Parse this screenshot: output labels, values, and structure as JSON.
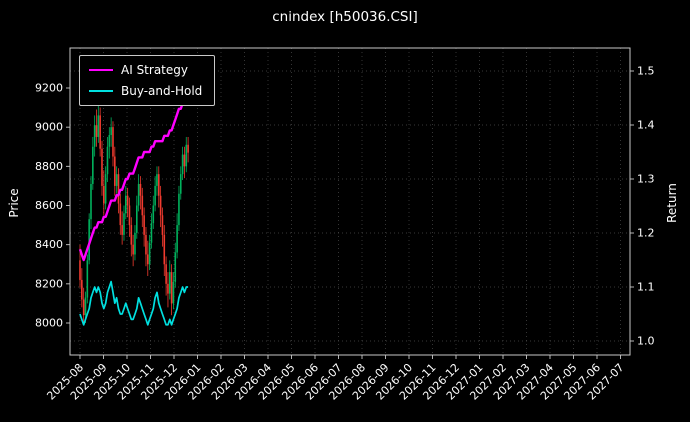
{
  "title": "cnindex [h50036.CSI]",
  "legend": {
    "items": [
      {
        "label": "AI Strategy",
        "color": "#ff00ff"
      },
      {
        "label": "Buy-and-Hold",
        "color": "#00e0e0"
      }
    ]
  },
  "chart_data": {
    "type": "candlestick+line",
    "title": "cnindex [h50036.CSI]",
    "x_tick_labels": [
      "2025-08",
      "2025-09",
      "2025-10",
      "2025-11",
      "2025-12",
      "2026-01",
      "2026-02",
      "2026-03",
      "2026-04",
      "2026-05",
      "2026-06",
      "2026-07",
      "2026-08",
      "2026-09",
      "2026-10",
      "2026-11",
      "2026-12",
      "2027-01",
      "2027-02",
      "2027-03",
      "2027-04",
      "2027-05",
      "2027-06",
      "2027-07"
    ],
    "price_axis": {
      "label": "Price",
      "ticks": [
        8000,
        8200,
        8400,
        8600,
        8800,
        9000,
        9200
      ],
      "range": [
        7950,
        9320
      ]
    },
    "return_axis": {
      "label": "Return",
      "ticks": [
        1.0,
        1.1,
        1.2,
        1.3,
        1.4,
        1.5
      ],
      "range": [
        0.97,
        1.53
      ]
    },
    "data_months_span": 4.6,
    "grid": true,
    "legend_position": "upper-left",
    "colors": {
      "up": "#00b25d",
      "down": "#f23b2f",
      "grid": "#8a8a8a",
      "spine": "#c9c9c9",
      "text": "#ffffff",
      "background": "#000000"
    },
    "candles": [
      [
        8320,
        8400,
        8180,
        8220
      ],
      [
        8220,
        8280,
        8080,
        8120
      ],
      [
        8120,
        8180,
        7990,
        8040
      ],
      [
        8040,
        8160,
        8000,
        8130
      ],
      [
        8130,
        8350,
        8100,
        8320
      ],
      [
        8320,
        8560,
        8300,
        8530
      ],
      [
        8530,
        8750,
        8480,
        8710
      ],
      [
        8710,
        8950,
        8680,
        8900
      ],
      [
        8900,
        9060,
        8850,
        9010
      ],
      [
        9010,
        9090,
        8900,
        8950
      ],
      [
        8950,
        9120,
        8920,
        9060
      ],
      [
        9060,
        9100,
        8850,
        8890
      ],
      [
        8890,
        8930,
        8650,
        8700
      ],
      [
        8700,
        8780,
        8550,
        8610
      ],
      [
        8610,
        8800,
        8580,
        8760
      ],
      [
        8760,
        8950,
        8720,
        8900
      ],
      [
        8900,
        9000,
        8840,
        8960
      ],
      [
        8960,
        9050,
        8900,
        9000
      ],
      [
        9000,
        9030,
        8800,
        8850
      ],
      [
        8850,
        8900,
        8650,
        8700
      ],
      [
        8700,
        8800,
        8660,
        8760
      ],
      [
        8760,
        8790,
        8560,
        8610
      ],
      [
        8610,
        8660,
        8450,
        8500
      ],
      [
        8500,
        8570,
        8400,
        8450
      ],
      [
        8450,
        8600,
        8420,
        8560
      ],
      [
        8560,
        8700,
        8530,
        8650
      ],
      [
        8650,
        8690,
        8540,
        8600
      ],
      [
        8600,
        8640,
        8440,
        8500
      ],
      [
        8500,
        8540,
        8340,
        8400
      ],
      [
        8400,
        8450,
        8290,
        8350
      ],
      [
        8350,
        8500,
        8320,
        8460
      ],
      [
        8460,
        8650,
        8430,
        8600
      ],
      [
        8600,
        8760,
        8570,
        8710
      ],
      [
        8710,
        8750,
        8580,
        8650
      ],
      [
        8650,
        8690,
        8490,
        8550
      ],
      [
        8550,
        8590,
        8390,
        8450
      ],
      [
        8450,
        8490,
        8290,
        8350
      ],
      [
        8350,
        8420,
        8240,
        8300
      ],
      [
        8300,
        8450,
        8270,
        8410
      ],
      [
        8410,
        8560,
        8380,
        8510
      ],
      [
        8510,
        8650,
        8480,
        8600
      ],
      [
        8600,
        8750,
        8570,
        8700
      ],
      [
        8700,
        8800,
        8650,
        8760
      ],
      [
        8760,
        8800,
        8590,
        8650
      ],
      [
        8650,
        8700,
        8490,
        8550
      ],
      [
        8550,
        8590,
        8390,
        8450
      ],
      [
        8450,
        8500,
        8240,
        8300
      ],
      [
        8300,
        8340,
        8140,
        8200
      ],
      [
        8200,
        8260,
        8080,
        8150
      ],
      [
        8150,
        8320,
        8120,
        8260
      ],
      [
        8260,
        8300,
        8040,
        8100
      ],
      [
        8100,
        8260,
        8070,
        8210
      ],
      [
        8210,
        8410,
        8180,
        8360
      ],
      [
        8360,
        8560,
        8330,
        8500
      ],
      [
        8500,
        8700,
        8470,
        8660
      ],
      [
        8660,
        8800,
        8630,
        8760
      ],
      [
        8760,
        8900,
        8730,
        8860
      ],
      [
        8860,
        8900,
        8740,
        8800
      ],
      [
        8800,
        8950,
        8770,
        8910
      ],
      [
        8910,
        8950,
        8820,
        8870
      ]
    ],
    "series": [
      {
        "name": "AI Strategy",
        "axis": "return",
        "color": "#ff00ff",
        "stroke_width": 2.4,
        "values": [
          1.17,
          1.16,
          1.15,
          1.16,
          1.17,
          1.18,
          1.19,
          1.2,
          1.21,
          1.21,
          1.22,
          1.22,
          1.22,
          1.23,
          1.23,
          1.24,
          1.25,
          1.26,
          1.26,
          1.26,
          1.27,
          1.27,
          1.28,
          1.28,
          1.29,
          1.3,
          1.3,
          1.31,
          1.31,
          1.31,
          1.32,
          1.33,
          1.34,
          1.34,
          1.34,
          1.35,
          1.35,
          1.35,
          1.35,
          1.36,
          1.36,
          1.37,
          1.37,
          1.37,
          1.37,
          1.37,
          1.38,
          1.38,
          1.38,
          1.39,
          1.39,
          1.4,
          1.41,
          1.42,
          1.43,
          1.43,
          1.44,
          1.44,
          1.45,
          1.45
        ]
      },
      {
        "name": "Buy-and-Hold",
        "axis": "return",
        "color": "#00e0e0",
        "stroke_width": 1.7,
        "values": [
          1.05,
          1.04,
          1.03,
          1.04,
          1.05,
          1.06,
          1.08,
          1.09,
          1.1,
          1.09,
          1.1,
          1.09,
          1.07,
          1.06,
          1.07,
          1.09,
          1.1,
          1.11,
          1.09,
          1.07,
          1.08,
          1.06,
          1.05,
          1.05,
          1.06,
          1.07,
          1.06,
          1.05,
          1.04,
          1.04,
          1.05,
          1.06,
          1.08,
          1.07,
          1.06,
          1.05,
          1.04,
          1.03,
          1.04,
          1.05,
          1.06,
          1.08,
          1.09,
          1.07,
          1.06,
          1.05,
          1.04,
          1.03,
          1.03,
          1.04,
          1.03,
          1.04,
          1.05,
          1.06,
          1.08,
          1.09,
          1.1,
          1.09,
          1.1,
          1.1
        ]
      }
    ]
  }
}
